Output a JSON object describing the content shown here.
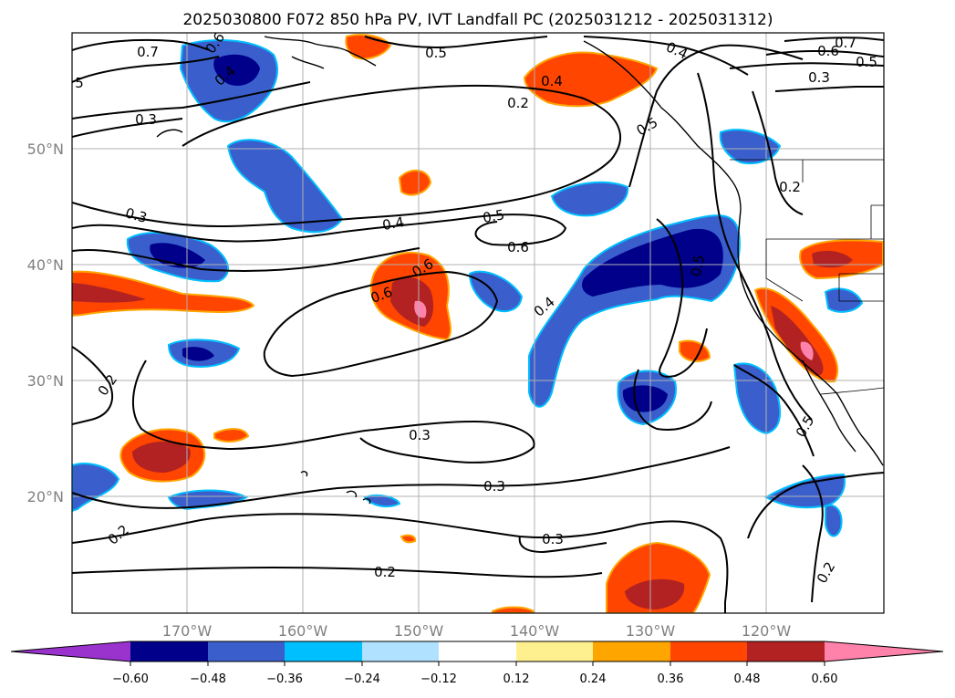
{
  "title": "2025030800 F072 850 hPa PV, IVT Landfall PC (2025031212 - 2025031312)",
  "lat_labels": [
    "50°N",
    "40°N",
    "30°N",
    "20°N"
  ],
  "lon_labels": [
    "170°W",
    "160°W",
    "150°W",
    "140°W",
    "130°W",
    "120°W"
  ],
  "colorbar": {
    "colors": [
      "#9a32cd",
      "#00008b",
      "#3a5fcd",
      "#00bfff",
      "#b0e2ff",
      "#ffffff",
      "#fff08f",
      "#ffa500",
      "#ff4500",
      "#b22222",
      "#ff82ab"
    ],
    "tick_labels": [
      "−0.60",
      "−0.48",
      "−0.36",
      "−0.24",
      "−0.12",
      "0.12",
      "0.24",
      "0.36",
      "0.48",
      "0.60"
    ]
  },
  "contour_labels": [
    {
      "id": "c1",
      "text": "0.7"
    },
    {
      "id": "c2",
      "text": "0.6"
    },
    {
      "id": "c3",
      "text": "0.4"
    },
    {
      "id": "c4",
      "text": "5"
    },
    {
      "id": "c5",
      "text": "0.3"
    },
    {
      "id": "c6",
      "text": "0.5"
    },
    {
      "id": "c7",
      "text": "0.4"
    },
    {
      "id": "c8",
      "text": "0.2"
    },
    {
      "id": "c9",
      "text": "0.4"
    },
    {
      "id": "c10",
      "text": "0.6"
    },
    {
      "id": "c11",
      "text": "0.7"
    },
    {
      "id": "c12",
      "text": "0.5"
    },
    {
      "id": "c13",
      "text": "0.3"
    },
    {
      "id": "c14",
      "text": "0.5"
    },
    {
      "id": "c15",
      "text": "0.3"
    },
    {
      "id": "c16",
      "text": "0.4"
    },
    {
      "id": "c17",
      "text": "0.5"
    },
    {
      "id": "c18",
      "text": "0.6"
    },
    {
      "id": "c19",
      "text": "0.6"
    },
    {
      "id": "c20",
      "text": "0.6"
    },
    {
      "id": "c21",
      "text": "0.4"
    },
    {
      "id": "c22",
      "text": "0.5"
    },
    {
      "id": "c23",
      "text": "0.2"
    },
    {
      "id": "c24",
      "text": "0.2"
    },
    {
      "id": "c25",
      "text": "0.3"
    },
    {
      "id": "c26",
      "text": "0.3"
    },
    {
      "id": "c27",
      "text": "0.5"
    },
    {
      "id": "c28",
      "text": "0.2"
    },
    {
      "id": "c29",
      "text": "0.3"
    },
    {
      "id": "c30",
      "text": "0.2"
    },
    {
      "id": "c31",
      "text": "0.2"
    }
  ]
}
